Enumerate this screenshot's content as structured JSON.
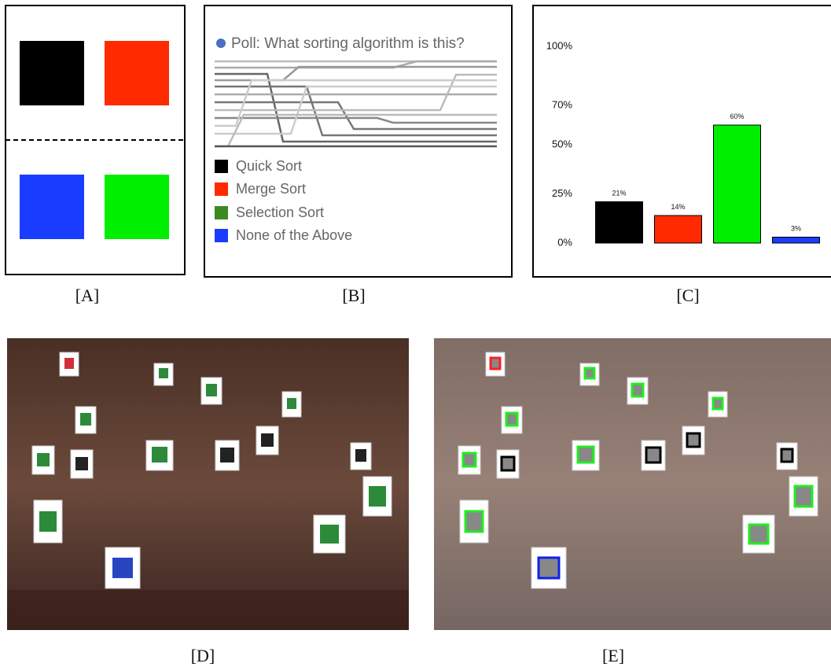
{
  "panels": {
    "a": {
      "label": "[A]"
    },
    "b": {
      "label": "[B]",
      "poll_title": "Poll: What sorting algorithm is this?",
      "options": [
        "Quick Sort",
        "Merge Sort",
        "Selection Sort",
        "None of the Above"
      ]
    },
    "c": {
      "label": "[C]"
    },
    "d": {
      "label": "[D]"
    },
    "e": {
      "label": "[E]"
    }
  },
  "chart_data": {
    "type": "bar",
    "categories": [
      null,
      null,
      null,
      null
    ],
    "values": [
      21,
      14,
      60,
      3
    ],
    "value_labels": [
      "21%",
      "14%",
      "60%",
      "3%"
    ],
    "colors": [
      "#000000",
      "#ff2a00",
      "#00ee00",
      "#1a3cff"
    ],
    "ylim": [
      0,
      100
    ],
    "yticks": [
      {
        "value": 0,
        "label": "0%"
      },
      {
        "value": 25,
        "label": "25%"
      },
      {
        "value": 50,
        "label": "50%"
      },
      {
        "value": 70,
        "label": "70%"
      },
      {
        "value": 100,
        "label": "100%"
      }
    ]
  }
}
